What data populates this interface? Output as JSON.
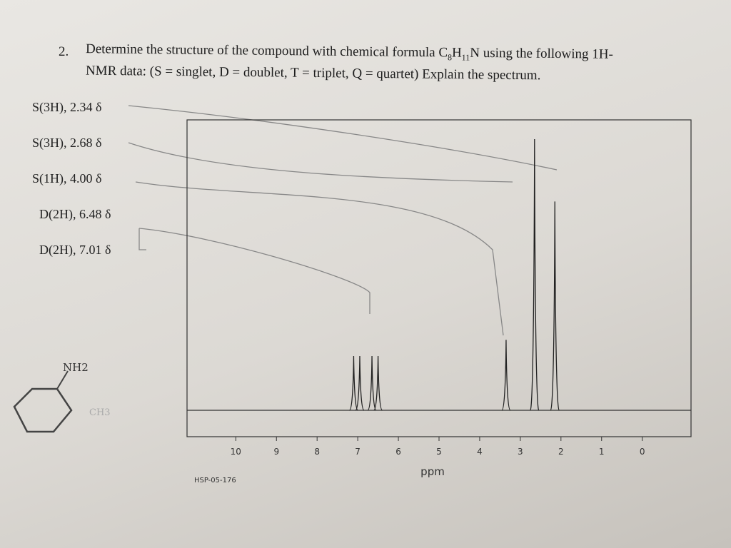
{
  "question": {
    "number": "2.",
    "line1": [
      "Determine the structure of the compound with chemical formula C",
      "8",
      "H",
      "11",
      "N using the following 1H-"
    ],
    "line2": "NMR data: (S = singlet, D = doublet, T = triplet, Q = quartet) Explain the spectrum."
  },
  "signals": [
    "S(3H), 2.34 δ",
    "S(3H), 2.68 δ",
    "S(1H), 4.00 δ",
    "D(2H), 6.48 δ",
    "D(2H), 7.01 δ"
  ],
  "spectrum": {
    "xlabel": "ppm",
    "code": "HSP-05-176",
    "xlim": [
      11.2,
      -1.2
    ],
    "xticks": [
      10,
      9,
      8,
      7,
      6,
      5,
      4,
      3,
      2,
      1,
      0
    ],
    "peaks": [
      {
        "ppm": 7.1,
        "height": 0.2
      },
      {
        "ppm": 6.95,
        "height": 0.2
      },
      {
        "ppm": 6.65,
        "height": 0.2
      },
      {
        "ppm": 6.5,
        "height": 0.2
      },
      {
        "ppm": 3.35,
        "height": 0.26
      },
      {
        "ppm": 2.65,
        "height": 1.0
      },
      {
        "ppm": 2.15,
        "height": 0.77
      }
    ]
  },
  "handwriting": {
    "amine": "NH2",
    "methyl": "CH3"
  }
}
